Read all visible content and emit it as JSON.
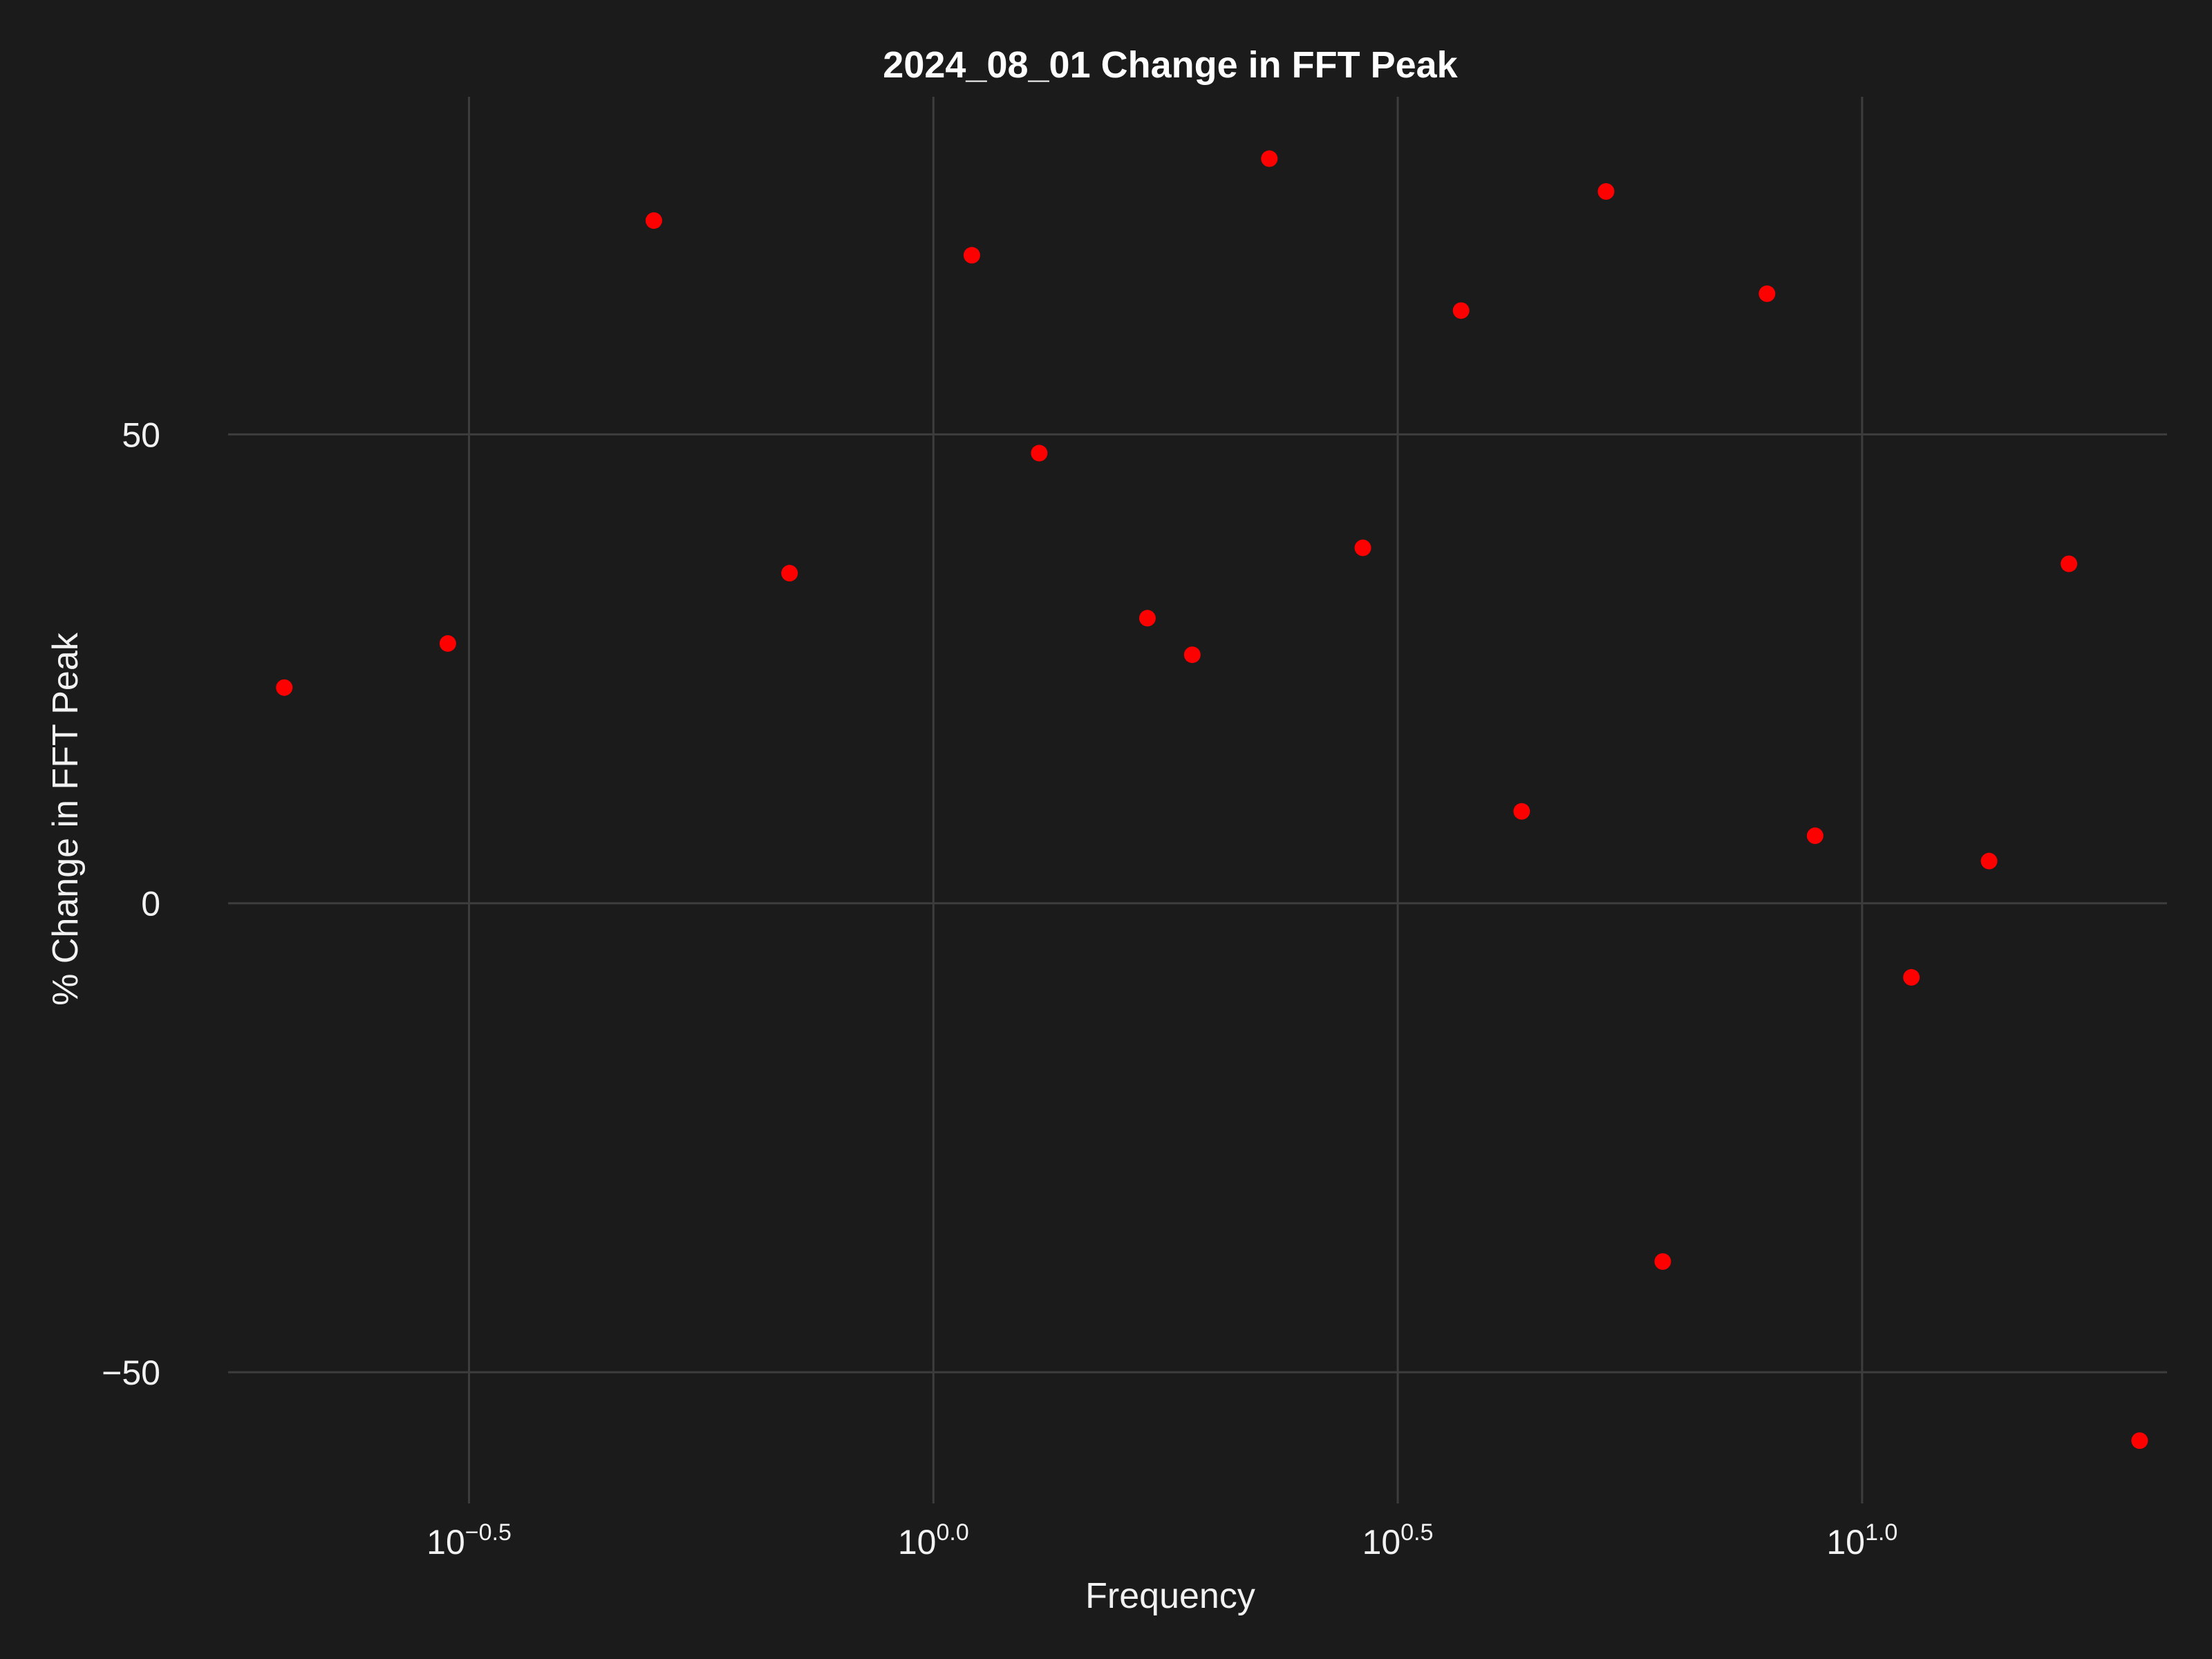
{
  "chart_data": {
    "type": "scatter",
    "title": "2024_08_01 Change in FFT Peak",
    "xlabel": "Frequency",
    "ylabel": "% Change in FFT Peak",
    "x_scale": "log10",
    "xlim": [
      0.174,
      21.3
    ],
    "ylim": [
      -64,
      86
    ],
    "x_ticks": [
      {
        "value": 0.3162,
        "base": "10",
        "exp": "−0.5"
      },
      {
        "value": 1.0,
        "base": "10",
        "exp": "0.0"
      },
      {
        "value": 3.1623,
        "base": "10",
        "exp": "0.5"
      },
      {
        "value": 10.0,
        "base": "10",
        "exp": "1.0"
      }
    ],
    "y_ticks": [
      {
        "value": 50,
        "label": "50"
      },
      {
        "value": 0,
        "label": "0"
      },
      {
        "value": -50,
        "label": "−50"
      }
    ],
    "grid": true,
    "marker_color": "#ff0000",
    "background_color": "#1b1b1b",
    "series": [
      {
        "points": [
          {
            "x": 0.2,
            "y": 23.0
          },
          {
            "x": 0.3,
            "y": 27.7
          },
          {
            "x": 0.5,
            "y": 72.8
          },
          {
            "x": 0.7,
            "y": 35.2
          },
          {
            "x": 1.1,
            "y": 69.1
          },
          {
            "x": 1.3,
            "y": 48.0
          },
          {
            "x": 1.7,
            "y": 30.4
          },
          {
            "x": 1.9,
            "y": 26.5
          },
          {
            "x": 2.3,
            "y": 79.4
          },
          {
            "x": 2.9,
            "y": 37.9
          },
          {
            "x": 3.7,
            "y": 63.2
          },
          {
            "x": 4.3,
            "y": 9.8
          },
          {
            "x": 5.3,
            "y": 75.9
          },
          {
            "x": 6.1,
            "y": -38.2
          },
          {
            "x": 7.9,
            "y": 65.0
          },
          {
            "x": 8.9,
            "y": 7.2
          },
          {
            "x": 11.3,
            "y": -7.9
          },
          {
            "x": 13.7,
            "y": 4.5
          },
          {
            "x": 16.7,
            "y": 36.2
          },
          {
            "x": 19.9,
            "y": -57.3
          }
        ]
      }
    ]
  }
}
